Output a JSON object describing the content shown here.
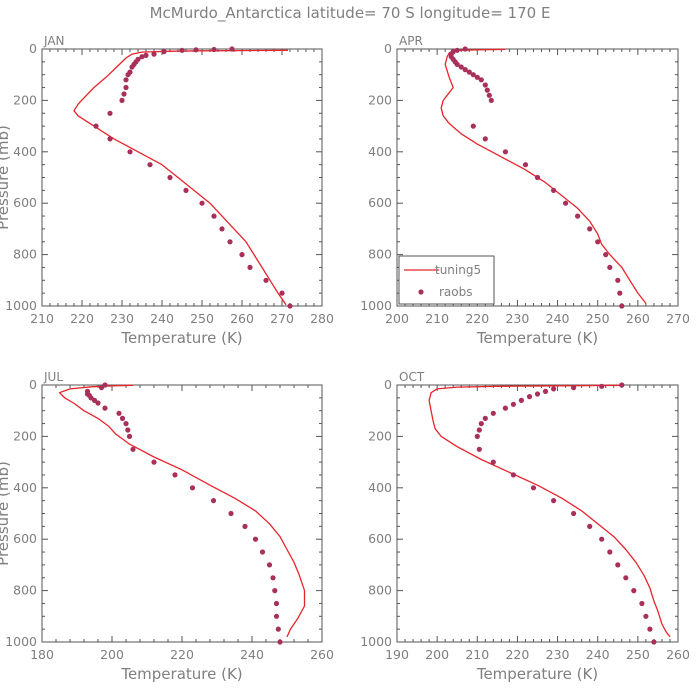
{
  "title": "McMurdo_Antarctica  latitude= 70 S longitude= 170 E",
  "colors": {
    "model": "#e8242b",
    "obs": "#a8305a",
    "axis": "#555555",
    "text": "#7f7f7f"
  },
  "chart_data": [
    {
      "type": "line",
      "panel": "JAN",
      "xlabel": "Temperature (K)",
      "ylabel": "Pressure (mb)",
      "xlim": [
        210,
        280
      ],
      "ylim": [
        1000,
        0
      ],
      "y_inverted": true,
      "xticks": [
        210,
        220,
        230,
        240,
        250,
        260,
        270,
        280
      ],
      "yticks": [
        0,
        200,
        400,
        600,
        800,
        1000
      ],
      "series": [
        {
          "name": "tuning5",
          "style": "line",
          "points": [
            [
              271.5,
              5
            ],
            [
              250,
              7
            ],
            [
              241,
              9
            ],
            [
              235,
              12
            ],
            [
              232.5,
              20
            ],
            [
              231,
              35
            ],
            [
              230,
              50
            ],
            [
              228,
              80
            ],
            [
              226,
              110
            ],
            [
              223,
              150
            ],
            [
              220.5,
              190
            ],
            [
              219,
              215
            ],
            [
              218,
              240
            ],
            [
              219,
              260
            ],
            [
              223,
              300
            ],
            [
              228,
              350
            ],
            [
              234,
              400
            ],
            [
              240,
              450
            ],
            [
              244,
              500
            ],
            [
              248,
              550
            ],
            [
              252,
              600
            ],
            [
              255,
              650
            ],
            [
              258,
              700
            ],
            [
              261,
              750
            ],
            [
              263,
              800
            ],
            [
              265,
              850
            ],
            [
              267,
              900
            ],
            [
              269,
              950
            ],
            [
              271,
              995
            ]
          ]
        },
        {
          "name": "raobs",
          "style": "points",
          "points": [
            [
              257.5,
              0
            ],
            [
              253,
              2
            ],
            [
              248.5,
              3
            ],
            [
              245,
              5
            ],
            [
              240.5,
              10
            ],
            [
              238,
              20
            ],
            [
              236,
              25
            ],
            [
              235,
              30
            ],
            [
              234,
              40
            ],
            [
              233.5,
              50
            ],
            [
              233,
              60
            ],
            [
              232.5,
              70
            ],
            [
              232,
              90
            ],
            [
              231.5,
              100
            ],
            [
              231,
              120
            ],
            [
              231,
              150
            ],
            [
              230.5,
              175
            ],
            [
              230,
              200
            ],
            [
              227,
              250
            ],
            [
              223.5,
              300
            ],
            [
              227,
              350
            ],
            [
              232,
              400
            ],
            [
              237,
              450
            ],
            [
              242,
              500
            ],
            [
              246,
              550
            ],
            [
              250,
              600
            ],
            [
              253,
              650
            ],
            [
              255,
              700
            ],
            [
              257,
              750
            ],
            [
              260,
              800
            ],
            [
              262,
              850
            ],
            [
              266,
              900
            ],
            [
              270,
              950
            ],
            [
              272,
              1000
            ]
          ]
        }
      ]
    },
    {
      "type": "line",
      "panel": "APR",
      "xlabel": "Temperature (K)",
      "ylabel": "",
      "xlim": [
        200,
        270
      ],
      "ylim": [
        1000,
        0
      ],
      "y_inverted": true,
      "xticks": [
        200,
        210,
        220,
        230,
        240,
        250,
        260,
        270
      ],
      "yticks": [
        0,
        200,
        400,
        600,
        800,
        1000
      ],
      "legend": {
        "placement": "lower-left",
        "entries": [
          "tuning5",
          "raobs"
        ]
      },
      "series": [
        {
          "name": "tuning5",
          "style": "line",
          "points": [
            [
              227,
              1
            ],
            [
              220,
              3
            ],
            [
              215.5,
              5
            ],
            [
              214,
              8
            ],
            [
              213,
              15
            ],
            [
              212.5,
              30
            ],
            [
              212,
              60
            ],
            [
              213,
              110
            ],
            [
              214,
              150
            ],
            [
              213,
              170
            ],
            [
              211.5,
              200
            ],
            [
              211,
              230
            ],
            [
              211.5,
              260
            ],
            [
              213,
              290
            ],
            [
              216,
              330
            ],
            [
              220,
              370
            ],
            [
              226,
              420
            ],
            [
              232,
              470
            ],
            [
              237,
              520
            ],
            [
              241,
              570
            ],
            [
              245,
              620
            ],
            [
              248,
              670
            ],
            [
              250,
              720
            ],
            [
              251,
              760
            ],
            [
              253,
              800
            ],
            [
              256,
              850
            ],
            [
              258,
              900
            ],
            [
              260,
              950
            ],
            [
              262,
              990
            ]
          ]
        },
        {
          "name": "raobs",
          "style": "points",
          "points": [
            [
              217,
              0
            ],
            [
              215,
              5
            ],
            [
              214,
              10
            ],
            [
              213.5,
              20
            ],
            [
              213.5,
              30
            ],
            [
              214,
              40
            ],
            [
              214.5,
              50
            ],
            [
              215,
              60
            ],
            [
              216,
              70
            ],
            [
              217,
              80
            ],
            [
              218,
              90
            ],
            [
              219,
              100
            ],
            [
              220,
              110
            ],
            [
              221,
              120
            ],
            [
              222,
              140
            ],
            [
              222.5,
              160
            ],
            [
              223,
              180
            ],
            [
              223.5,
              200
            ],
            [
              219,
              300
            ],
            [
              222,
              350
            ],
            [
              227,
              400
            ],
            [
              232,
              450
            ],
            [
              235,
              500
            ],
            [
              239,
              550
            ],
            [
              242,
              600
            ],
            [
              245,
              650
            ],
            [
              248,
              700
            ],
            [
              250,
              750
            ],
            [
              252,
              800
            ],
            [
              253,
              850
            ],
            [
              255,
              900
            ],
            [
              255.5,
              950
            ],
            [
              256,
              1000
            ]
          ]
        }
      ]
    },
    {
      "type": "line",
      "panel": "JUL",
      "xlabel": "Temperature (K)",
      "ylabel": "Pressure (mb)",
      "xlim": [
        180,
        260
      ],
      "ylim": [
        1000,
        0
      ],
      "y_inverted": true,
      "xticks": [
        180,
        200,
        220,
        240,
        260
      ],
      "yticks": [
        0,
        200,
        400,
        600,
        800,
        1000
      ],
      "series": [
        {
          "name": "tuning5",
          "style": "line",
          "points": [
            [
              206,
              1
            ],
            [
              200,
              3
            ],
            [
              194,
              7
            ],
            [
              188,
              15
            ],
            [
              185,
              30
            ],
            [
              186.5,
              50
            ],
            [
              189,
              70
            ],
            [
              192,
              100
            ],
            [
              196,
              130
            ],
            [
              199,
              160
            ],
            [
              201,
              190
            ],
            [
              205,
              230
            ],
            [
              212,
              280
            ],
            [
              220,
              330
            ],
            [
              228,
              390
            ],
            [
              235,
              440
            ],
            [
              241,
              490
            ],
            [
              245,
              540
            ],
            [
              248,
              590
            ],
            [
              250,
              640
            ],
            [
              252,
              690
            ],
            [
              253.5,
              740
            ],
            [
              255,
              800
            ],
            [
              255,
              860
            ],
            [
              253,
              910
            ],
            [
              251,
              950
            ],
            [
              250,
              980
            ]
          ]
        },
        {
          "name": "raobs",
          "style": "points",
          "points": [
            [
              198,
              0
            ],
            [
              197,
              10
            ],
            [
              193,
              25
            ],
            [
              193,
              35
            ],
            [
              193.5,
              40
            ],
            [
              194,
              50
            ],
            [
              195,
              60
            ],
            [
              196,
              70
            ],
            [
              198,
              90
            ],
            [
              202,
              110
            ],
            [
              203,
              130
            ],
            [
              204,
              150
            ],
            [
              204.5,
              175
            ],
            [
              205,
              200
            ],
            [
              206,
              250
            ],
            [
              212,
              300
            ],
            [
              218,
              350
            ],
            [
              223,
              400
            ],
            [
              229,
              450
            ],
            [
              234,
              500
            ],
            [
              238,
              550
            ],
            [
              241,
              600
            ],
            [
              243,
              650
            ],
            [
              245,
              700
            ],
            [
              246,
              750
            ],
            [
              246.5,
              800
            ],
            [
              247,
              850
            ],
            [
              247,
              900
            ],
            [
              247.5,
              950
            ],
            [
              248,
              1000
            ]
          ]
        }
      ]
    },
    {
      "type": "line",
      "panel": "OCT",
      "xlabel": "Temperature (K)",
      "ylabel": "",
      "xlim": [
        190,
        260
      ],
      "ylim": [
        1000,
        0
      ],
      "y_inverted": true,
      "xticks": [
        190,
        200,
        210,
        220,
        230,
        240,
        250,
        260
      ],
      "yticks": [
        0,
        200,
        400,
        600,
        800,
        1000
      ],
      "series": [
        {
          "name": "tuning5",
          "style": "line",
          "points": [
            [
              246,
              1
            ],
            [
              230,
              3
            ],
            [
              215,
              5
            ],
            [
              205,
              8
            ],
            [
              200,
              15
            ],
            [
              198.5,
              30
            ],
            [
              198,
              60
            ],
            [
              198.5,
              100
            ],
            [
              199,
              140
            ],
            [
              199.5,
              170
            ],
            [
              201,
              200
            ],
            [
              205,
              240
            ],
            [
              211,
              290
            ],
            [
              218,
              340
            ],
            [
              225,
              390
            ],
            [
              231,
              440
            ],
            [
              236,
              490
            ],
            [
              240,
              540
            ],
            [
              244,
              590
            ],
            [
              247,
              640
            ],
            [
              249.5,
              690
            ],
            [
              251.5,
              740
            ],
            [
              253,
              790
            ],
            [
              254,
              840
            ],
            [
              255,
              880
            ],
            [
              256,
              930
            ],
            [
              257,
              960
            ],
            [
              258,
              980
            ]
          ]
        },
        {
          "name": "raobs",
          "style": "points",
          "points": [
            [
              246,
              0
            ],
            [
              241,
              5
            ],
            [
              234,
              10
            ],
            [
              229,
              15
            ],
            [
              227,
              25
            ],
            [
              225,
              35
            ],
            [
              223,
              45
            ],
            [
              221,
              60
            ],
            [
              219,
              75
            ],
            [
              217,
              90
            ],
            [
              214,
              110
            ],
            [
              212,
              130
            ],
            [
              211,
              150
            ],
            [
              210.5,
              175
            ],
            [
              210,
              200
            ],
            [
              210.5,
              250
            ],
            [
              214,
              300
            ],
            [
              219,
              350
            ],
            [
              224,
              400
            ],
            [
              229,
              450
            ],
            [
              234,
              500
            ],
            [
              238,
              550
            ],
            [
              241,
              600
            ],
            [
              243,
              650
            ],
            [
              245,
              700
            ],
            [
              247,
              750
            ],
            [
              249,
              800
            ],
            [
              251,
              850
            ],
            [
              252,
              900
            ],
            [
              253,
              950
            ],
            [
              254,
              1000
            ]
          ]
        }
      ]
    }
  ]
}
